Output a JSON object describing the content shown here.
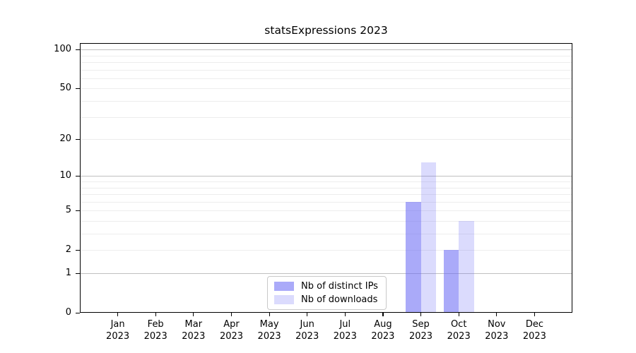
{
  "chart_data": {
    "type": "bar",
    "title": "statsExpressions 2023",
    "categories": [
      "Jan 2023",
      "Feb 2023",
      "Mar 2023",
      "Apr 2023",
      "May 2023",
      "Jun 2023",
      "Jul 2023",
      "Aug 2023",
      "Sep 2023",
      "Oct 2023",
      "Nov 2023",
      "Dec 2023"
    ],
    "series": [
      {
        "name": "Nb of distinct IPs",
        "color": "rgba(105,105,245,0.57)",
        "values": [
          0,
          0,
          0,
          0,
          0,
          0,
          0,
          0,
          6,
          2,
          0,
          0
        ]
      },
      {
        "name": "Nb of downloads",
        "color": "rgba(105,105,245,0.24)",
        "values": [
          0,
          0,
          0,
          0,
          0,
          0,
          0,
          0,
          13,
          4,
          0,
          0
        ]
      }
    ],
    "xlabel": "",
    "ylabel": "",
    "scale": "log1p",
    "ylim": [
      0,
      112
    ],
    "yticks": [
      100,
      50,
      20,
      10,
      5,
      2,
      1,
      0
    ],
    "grid": {
      "major_values": [
        1,
        10,
        100
      ],
      "minor_values": [
        2,
        3,
        4,
        5,
        6,
        7,
        8,
        9,
        20,
        30,
        40,
        50,
        60,
        70,
        80,
        90
      ],
      "major_color": "#c0c0c0",
      "minor_color": "#ededed"
    },
    "legend_position": "lower center inside",
    "background_color": "#ffffff",
    "frame_color": "#000000"
  }
}
